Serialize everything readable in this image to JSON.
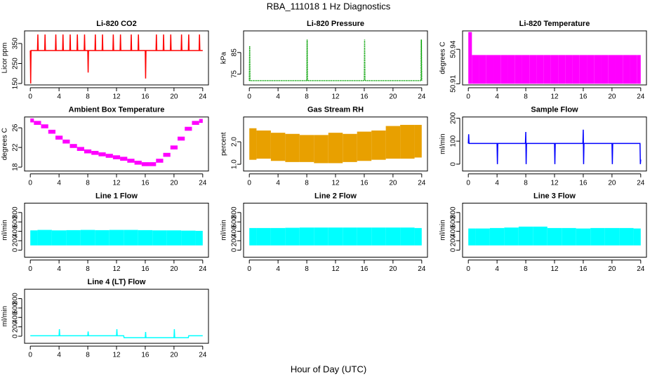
{
  "title": "RBA_111018  1 Hz Diagnostics",
  "xlabel": "Hour of Day (UTC)",
  "chart_data": [
    {
      "type": "line",
      "title": "Li-820 CO2",
      "ylabel": "Licor ppm",
      "color": "#ff0000",
      "x": [
        0,
        0.05,
        0.1,
        1,
        1.05,
        1.1,
        2,
        2.05,
        2.1,
        3.5,
        3.55,
        3.6,
        4.5,
        4.55,
        4.6,
        5.5,
        5.55,
        5.6,
        6.5,
        6.55,
        6.6,
        7.5,
        7.55,
        7.6,
        8,
        8.05,
        8.1,
        9,
        9.05,
        9.1,
        10,
        10.05,
        10.1,
        11.5,
        11.55,
        11.6,
        12.5,
        12.55,
        12.6,
        14,
        14.05,
        14.1,
        15,
        15.05,
        15.1,
        16,
        16.05,
        16.1,
        17.5,
        17.55,
        17.6,
        18.5,
        18.55,
        18.6,
        19.5,
        19.55,
        19.6,
        21,
        21.05,
        21.1,
        22,
        22.05,
        22.1,
        23.5,
        23.55,
        23.6,
        24
      ],
      "values": [
        315,
        150,
        315,
        315,
        395,
        315,
        315,
        395,
        315,
        315,
        395,
        315,
        315,
        395,
        315,
        315,
        395,
        315,
        315,
        395,
        315,
        315,
        395,
        315,
        315,
        205,
        315,
        315,
        395,
        315,
        315,
        395,
        315,
        315,
        395,
        315,
        315,
        395,
        315,
        315,
        395,
        315,
        315,
        395,
        315,
        315,
        175,
        315,
        315,
        395,
        315,
        315,
        395,
        315,
        315,
        395,
        315,
        315,
        395,
        315,
        315,
        395,
        315,
        315,
        395,
        315,
        315
      ],
      "xlim": [
        -0.8,
        24.8
      ],
      "xticks": [
        0,
        4,
        8,
        12,
        16,
        20,
        24
      ],
      "ylim": [
        143,
        413
      ],
      "yticks": [
        150,
        250,
        350
      ]
    },
    {
      "type": "line",
      "title": "Li-820 Pressure",
      "ylabel": "kPa",
      "color": "#00a000",
      "line_style": "dotted",
      "x": [
        0,
        0.05,
        0.1,
        8,
        8.05,
        8.1,
        16,
        16.05,
        16.1,
        23.9,
        23.95,
        24
      ],
      "values": [
        72,
        88,
        72,
        72,
        91,
        72,
        72,
        91,
        72,
        72,
        91,
        72
      ],
      "xlim": [
        -0.8,
        24.8
      ],
      "xticks": [
        0,
        4,
        8,
        12,
        16,
        20,
        24
      ],
      "ylim": [
        70,
        95
      ],
      "yticks": [
        75,
        85
      ]
    },
    {
      "type": "range",
      "title": "Li-820 Temperature",
      "ylabel": "degrees C",
      "color": "#ff00ff",
      "x": [
        0,
        1,
        2,
        3,
        4,
        5,
        6,
        7,
        8,
        9,
        10,
        11,
        12,
        13,
        14,
        15,
        16,
        17,
        18,
        19,
        20,
        21,
        22,
        23,
        24
      ],
      "low": [
        50.91,
        50.91,
        50.91,
        50.91,
        50.91,
        50.91,
        50.91,
        50.91,
        50.91,
        50.91,
        50.91,
        50.91,
        50.91,
        50.91,
        50.91,
        50.91,
        50.91,
        50.91,
        50.91,
        50.91,
        50.91,
        50.91,
        50.91,
        50.91,
        50.91
      ],
      "high": [
        50.955,
        50.935,
        50.935,
        50.935,
        50.935,
        50.935,
        50.935,
        50.935,
        50.935,
        50.935,
        50.935,
        50.935,
        50.935,
        50.935,
        50.935,
        50.935,
        50.935,
        50.935,
        50.935,
        50.935,
        50.935,
        50.935,
        50.935,
        50.935,
        50.935
      ],
      "xlim": [
        -0.8,
        24.8
      ],
      "xticks": [
        0,
        4,
        8,
        12,
        16,
        20,
        24
      ],
      "ylim": [
        50.909,
        50.956
      ],
      "yticks": [
        50.91,
        50.94
      ]
    },
    {
      "type": "range",
      "title": "Ambient Box Temperature",
      "ylabel": "degrees C",
      "color": "#ff00ff",
      "x": [
        0,
        1,
        2,
        3,
        4,
        5,
        6,
        7,
        8,
        9,
        10,
        11,
        12,
        13,
        14,
        15,
        16,
        17,
        18,
        19,
        20,
        21,
        22,
        23,
        24
      ],
      "low": [
        27.1,
        26.6,
        25.9,
        24.8,
        23.6,
        22.8,
        21.9,
        21.3,
        20.8,
        20.5,
        20.2,
        19.9,
        19.6,
        19.3,
        18.9,
        18.5,
        18.2,
        18.2,
        18.9,
        20.1,
        21.6,
        23.4,
        25.4,
        26.6,
        27.0
      ],
      "high": [
        27.9,
        27.4,
        26.7,
        25.6,
        24.4,
        23.6,
        22.7,
        22.1,
        21.6,
        21.3,
        21.0,
        20.7,
        20.4,
        20.1,
        19.7,
        19.3,
        19.0,
        19.0,
        19.7,
        20.9,
        22.4,
        24.2,
        26.2,
        27.4,
        27.8
      ],
      "xlim": [
        -0.8,
        24.8
      ],
      "xticks": [
        0,
        4,
        8,
        12,
        16,
        20,
        24
      ],
      "ylim": [
        17.2,
        28.2
      ],
      "yticks": [
        18,
        22,
        26
      ]
    },
    {
      "type": "range",
      "title": "Gas Stream RH",
      "ylabel": "percent",
      "color": "#e8a000",
      "x": [
        0,
        2,
        4,
        6,
        8,
        10,
        12,
        14,
        16,
        18,
        20,
        22,
        24
      ],
      "low": [
        1.2,
        1.25,
        1.15,
        1.1,
        1.1,
        1.05,
        1.05,
        1.1,
        1.15,
        1.2,
        1.25,
        1.25,
        1.3
      ],
      "high": [
        2.6,
        2.5,
        2.4,
        2.35,
        2.3,
        2.3,
        2.4,
        2.35,
        2.45,
        2.5,
        2.7,
        2.75,
        2.75
      ],
      "xlim": [
        -0.8,
        24.8
      ],
      "xticks": [
        0,
        4,
        8,
        12,
        16,
        20,
        24
      ],
      "ylim": [
        0.7,
        3.1
      ],
      "yticks": [
        {
          "value": 1,
          "label": "1.0"
        },
        {
          "value": 2,
          "label": "2.0"
        }
      ]
    },
    {
      "type": "line",
      "title": "Sample Flow",
      "ylabel": "ml/min",
      "color": "#0000ff",
      "x": [
        0,
        0.05,
        0.1,
        4,
        4.05,
        4.1,
        7.95,
        8,
        8.05,
        8.1,
        12,
        12.05,
        12.1,
        15.95,
        16,
        16.05,
        16.1,
        20,
        20.05,
        20.1,
        23.9,
        23.95,
        24
      ],
      "values": [
        90,
        130,
        90,
        90,
        0,
        90,
        90,
        140,
        0,
        90,
        90,
        0,
        90,
        90,
        150,
        0,
        90,
        90,
        0,
        90,
        90,
        0,
        20
      ],
      "xlim": [
        -0.8,
        24.8
      ],
      "xticks": [
        0,
        4,
        8,
        12,
        16,
        20,
        24
      ],
      "ylim": [
        -30,
        205
      ],
      "yticks": [
        0,
        100,
        200
      ]
    },
    {
      "type": "range",
      "title": "Line 1 Flow",
      "ylabel": "ml/min",
      "color": "#00ffff",
      "x": [
        0,
        2,
        4,
        6,
        8,
        10,
        12,
        14,
        16,
        18,
        20,
        22,
        24
      ],
      "low": [
        100,
        100,
        100,
        100,
        100,
        100,
        100,
        100,
        100,
        100,
        100,
        100,
        100
      ],
      "high": [
        420,
        430,
        420,
        425,
        430,
        425,
        430,
        430,
        425,
        420,
        420,
        415,
        410
      ],
      "xlim": [
        -0.8,
        24.8
      ],
      "xticks": [
        0,
        4,
        8,
        12,
        16,
        20,
        24
      ],
      "ylim": [
        -150,
        1000
      ],
      "yticks": [
        0,
        200,
        400,
        600,
        800
      ]
    },
    {
      "type": "range",
      "title": "Line 2 Flow",
      "ylabel": "ml/min",
      "color": "#00ffff",
      "x": [
        0,
        2,
        4,
        6,
        8,
        10,
        12,
        14,
        16,
        18,
        20,
        22,
        24
      ],
      "low": [
        100,
        100,
        100,
        100,
        100,
        100,
        100,
        100,
        100,
        100,
        100,
        100,
        100
      ],
      "high": [
        470,
        470,
        470,
        475,
        480,
        480,
        480,
        480,
        480,
        480,
        480,
        480,
        470
      ],
      "xlim": [
        -0.8,
        24.8
      ],
      "xticks": [
        0,
        4,
        8,
        12,
        16,
        20,
        24
      ],
      "ylim": [
        -150,
        1000
      ],
      "yticks": [
        0,
        200,
        400,
        600,
        800
      ]
    },
    {
      "type": "range",
      "title": "Line 3 Flow",
      "ylabel": "ml/min",
      "color": "#00ffff",
      "x": [
        0,
        2,
        4,
        6,
        8,
        10,
        12,
        14,
        16,
        18,
        20,
        22,
        24
      ],
      "low": [
        100,
        100,
        100,
        100,
        100,
        100,
        100,
        100,
        100,
        100,
        100,
        100,
        100
      ],
      "high": [
        460,
        460,
        470,
        480,
        500,
        500,
        470,
        470,
        460,
        470,
        470,
        470,
        460
      ],
      "xlim": [
        -0.8,
        24.8
      ],
      "xticks": [
        0,
        4,
        8,
        12,
        16,
        20,
        24
      ],
      "ylim": [
        -150,
        1000
      ],
      "yticks": [
        0,
        200,
        400,
        600,
        800
      ]
    },
    {
      "type": "line",
      "title": "Line 4 (LT) Flow",
      "ylabel": "ml/min",
      "color": "#00ffff",
      "x": [
        0,
        4,
        4.05,
        4.1,
        8,
        8.05,
        8.1,
        12,
        12.05,
        12.1,
        13,
        13.05,
        16,
        16.05,
        16.1,
        20,
        20.05,
        20.1,
        22,
        22.05,
        24
      ],
      "values": [
        10,
        10,
        150,
        10,
        10,
        100,
        10,
        10,
        150,
        10,
        10,
        -30,
        -30,
        90,
        -30,
        -30,
        150,
        -30,
        -30,
        10,
        10
      ],
      "xlim": [
        -0.8,
        24.8
      ],
      "xticks": [
        0,
        4,
        8,
        12,
        16,
        20,
        24
      ],
      "ylim": [
        -150,
        1000
      ],
      "yticks": [
        0,
        200,
        400,
        600,
        800
      ]
    }
  ]
}
